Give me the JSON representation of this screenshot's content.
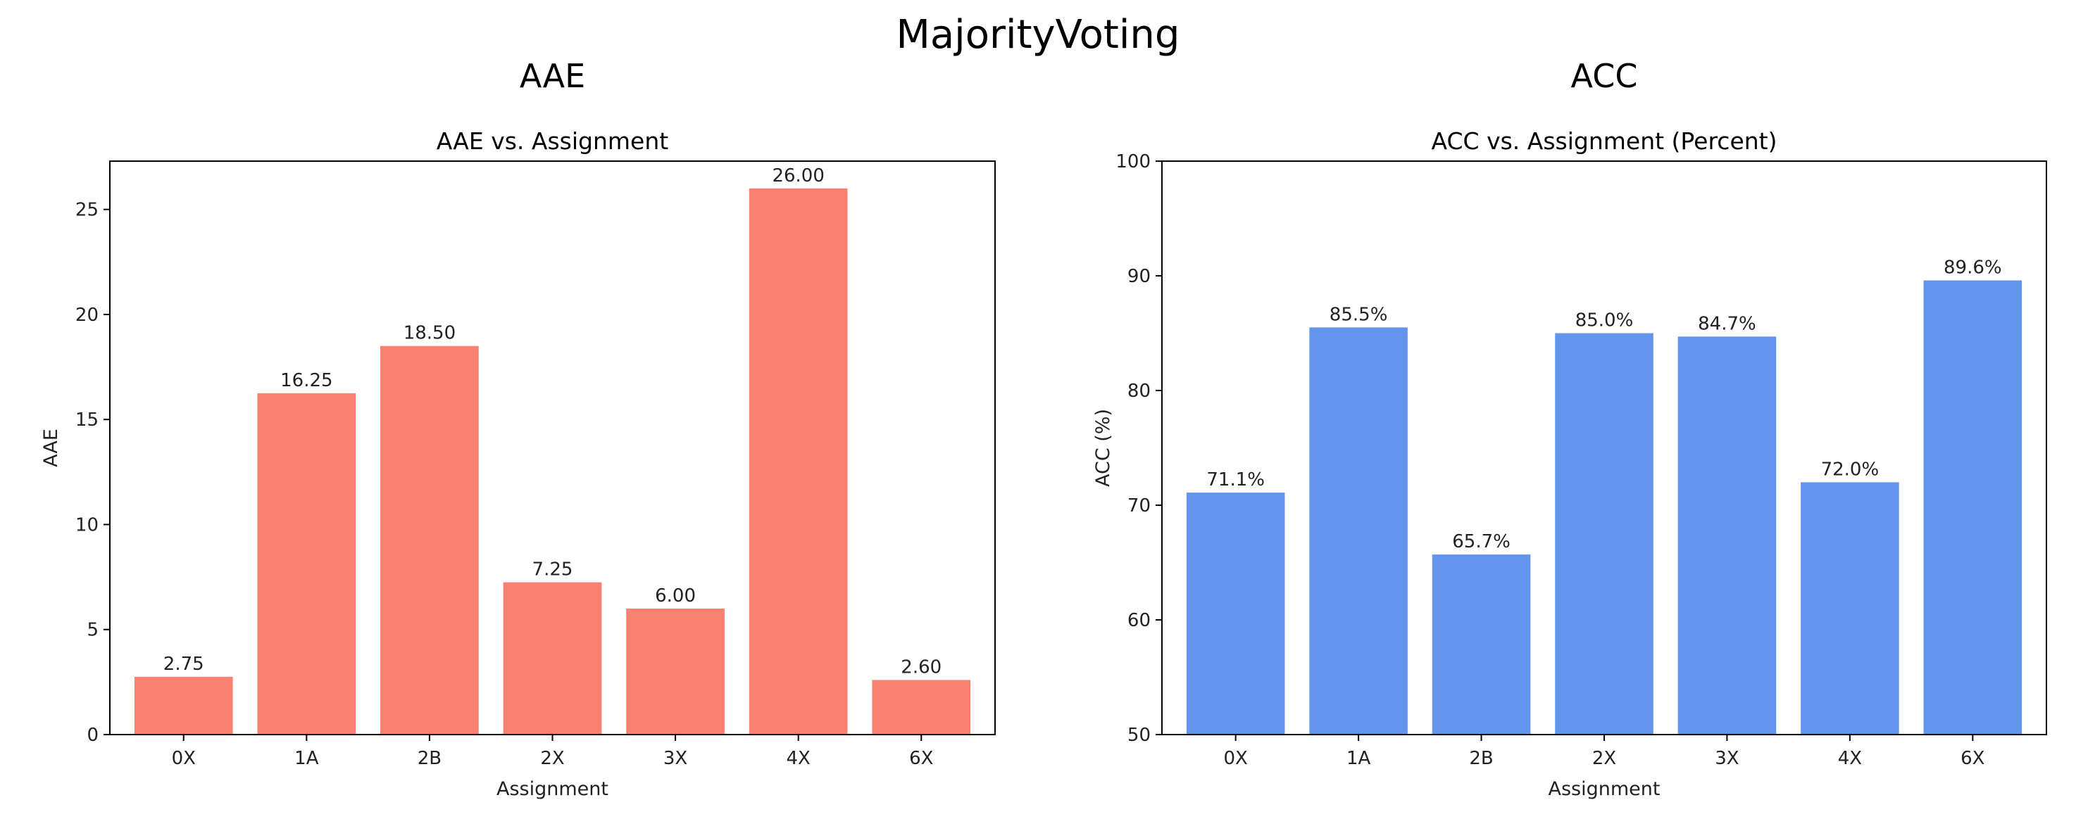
{
  "figure": {
    "suptitle": "MajorityVoting"
  },
  "chart_data": [
    {
      "type": "bar",
      "panel_title": "AAE",
      "title": "AAE vs. Assignment",
      "xlabel": "Assignment",
      "ylabel": "AAE",
      "categories": [
        "0X",
        "1A",
        "2B",
        "2X",
        "3X",
        "4X",
        "6X"
      ],
      "values": [
        2.75,
        16.25,
        18.5,
        7.25,
        6.0,
        26.0,
        2.6
      ],
      "data_labels": [
        "2.75",
        "16.25",
        "18.50",
        "7.25",
        "6.00",
        "26.00",
        "2.60"
      ],
      "ylim": [
        0,
        27.3
      ],
      "yticks": [
        0,
        5,
        10,
        15,
        20,
        25
      ],
      "ytick_labels": [
        "0",
        "5",
        "10",
        "15",
        "20",
        "25"
      ],
      "bar_color": "#FA8072",
      "grid": false
    },
    {
      "type": "bar",
      "panel_title": "ACC",
      "title": "ACC vs. Assignment (Percent)",
      "xlabel": "Assignment",
      "ylabel": "ACC (%)",
      "categories": [
        "0X",
        "1A",
        "2B",
        "2X",
        "3X",
        "4X",
        "6X"
      ],
      "values": [
        71.1,
        85.5,
        65.7,
        85.0,
        84.7,
        72.0,
        89.6
      ],
      "data_labels": [
        "71.1%",
        "85.5%",
        "65.7%",
        "85.0%",
        "84.7%",
        "72.0%",
        "89.6%"
      ],
      "ylim": [
        50,
        100
      ],
      "yticks": [
        50,
        60,
        70,
        80,
        90,
        100
      ],
      "ytick_labels": [
        "50",
        "60",
        "70",
        "80",
        "90",
        "100"
      ],
      "bar_color": "#6495ED",
      "grid": false
    }
  ]
}
